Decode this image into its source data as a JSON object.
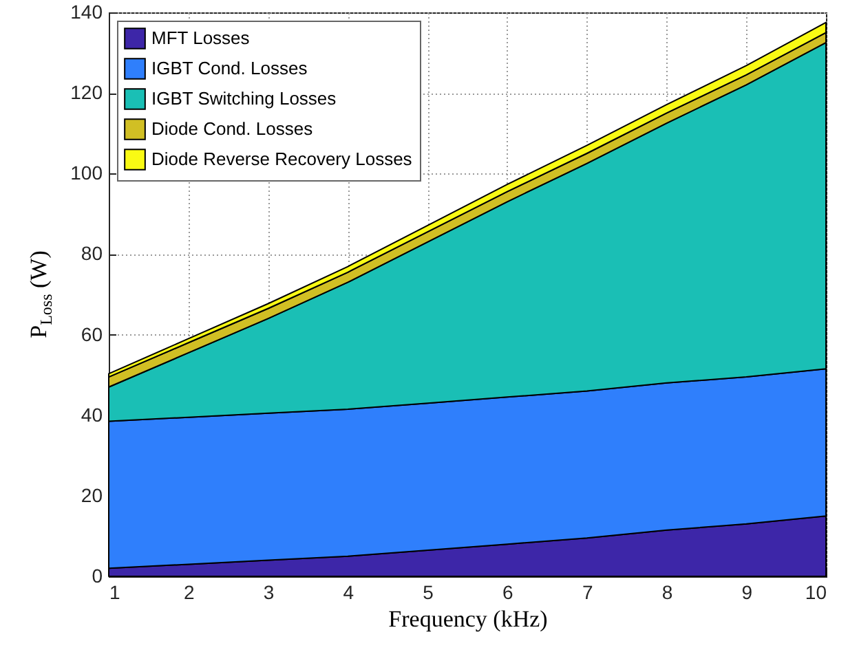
{
  "chart_data": {
    "type": "area",
    "stacked": true,
    "xlabel": "Frequency (kHz)",
    "ylabel": "P$_{Loss}$ (W)",
    "x": [
      1,
      2,
      3,
      4,
      5,
      6,
      7,
      8,
      9,
      10
    ],
    "series": [
      {
        "name": "MFT Losses",
        "color": "#3d26a8",
        "values": [
          2,
          3,
          4,
          5,
          6.5,
          8,
          9.5,
          11.5,
          13,
          15
        ]
      },
      {
        "name": "IGBT Cond. Losses",
        "color": "#2f7ffc",
        "values": [
          36.5,
          36.5,
          36.5,
          36.5,
          36.5,
          36.5,
          36.5,
          36.5,
          36.5,
          36.5
        ]
      },
      {
        "name": "IGBT Switching Losses",
        "color": "#1abfb5",
        "values": [
          8.5,
          16,
          23.5,
          31.5,
          40,
          48.5,
          56.5,
          64.5,
          72.5,
          81
        ]
      },
      {
        "name": "Diode Cond. Losses",
        "color": "#d1bf24",
        "values": [
          2.5,
          2.5,
          2.5,
          2.5,
          2.5,
          2.5,
          2.5,
          2.5,
          2.5,
          2.5
        ]
      },
      {
        "name": "Diode Reverse Recovery Losses",
        "color": "#f9fa14",
        "values": [
          0.8,
          1,
          1.2,
          1.4,
          1.6,
          1.8,
          2,
          2.1,
          2.3,
          2.5
        ]
      }
    ],
    "xlim": [
      1,
      10
    ],
    "xticks": [
      1,
      2,
      3,
      4,
      5,
      6,
      7,
      8,
      9,
      10
    ],
    "ylim": [
      0,
      140
    ],
    "yticks": [
      0,
      20,
      40,
      60,
      80,
      100,
      120,
      140
    ],
    "grid": true,
    "legend": "top left"
  }
}
